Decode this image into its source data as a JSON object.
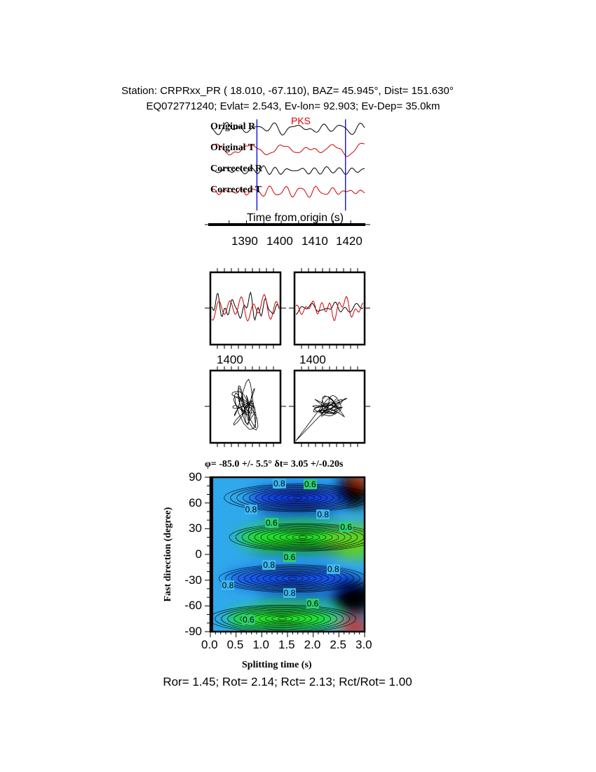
{
  "header": {
    "line1": "Station: CRPRxx_PR (  18.010,  -67.110), BAZ=   45.945°, Dist=  151.630°",
    "line2": "EQ072771240; Evlat=   2.543, Ev-lon=  92.903; Ev-Dep= 35.0km"
  },
  "chart_data": [
    {
      "type": "line",
      "title": "",
      "phase_label": "PKS",
      "xlabel": "Time from origin (s)",
      "xlim": [
        1380,
        1424
      ],
      "xticks": [
        "1390",
        "1400",
        "1410",
        "1420"
      ],
      "window_markers": [
        1393,
        1418.5
      ],
      "series": [
        {
          "name": "Original R",
          "color": "#000000"
        },
        {
          "name": "Original T",
          "color": "#d00000"
        },
        {
          "name": "Corrected R",
          "color": "#000000"
        },
        {
          "name": "Corrected T",
          "color": "#d00000"
        }
      ]
    },
    {
      "type": "line",
      "panels": [
        "original",
        "corrected"
      ],
      "xtick_label": "1400",
      "colors": [
        "#000000",
        "#d00000"
      ]
    },
    {
      "type": "line",
      "panels": [
        "original particle motion",
        "corrected particle motion"
      ]
    },
    {
      "type": "heatmap",
      "title": "φ= -85.0 +/- 5.5° δt= 3.05 +/-0.20s",
      "xlabel": "Splitting time (s)",
      "ylabel": "Fast direction (degree)",
      "xlim": [
        0,
        3
      ],
      "ylim": [
        -90,
        90
      ],
      "xticks": [
        "0.0",
        "0.5",
        "1.0",
        "1.5",
        "2.0",
        "2.5",
        "3.0"
      ],
      "yticks": [
        "90",
        "60",
        "30",
        "0",
        "-30",
        "-60",
        "-90"
      ],
      "contour_labels": [
        {
          "x": 1.35,
          "y": 83,
          "text": "0.8"
        },
        {
          "x": 1.95,
          "y": 82,
          "text": "0.6"
        },
        {
          "x": 0.8,
          "y": 52,
          "text": "0.8"
        },
        {
          "x": 2.2,
          "y": 47,
          "text": "0.8"
        },
        {
          "x": 1.2,
          "y": 37,
          "text": "0.6"
        },
        {
          "x": 2.65,
          "y": 32,
          "text": "0.6"
        },
        {
          "x": 1.55,
          "y": -3,
          "text": "0.6"
        },
        {
          "x": 1.15,
          "y": -12,
          "text": "0.8"
        },
        {
          "x": 2.4,
          "y": -17,
          "text": "0.8"
        },
        {
          "x": 0.35,
          "y": -36,
          "text": "0.8"
        },
        {
          "x": 1.55,
          "y": -45,
          "text": "0.8"
        },
        {
          "x": 2.0,
          "y": -57,
          "text": "0.6"
        },
        {
          "x": 0.75,
          "y": -76,
          "text": "0.6"
        }
      ]
    }
  ],
  "footer": "Ror= 1.45; Rot= 2.14; Rct= 2.13; Rct/Rot= 1.00"
}
